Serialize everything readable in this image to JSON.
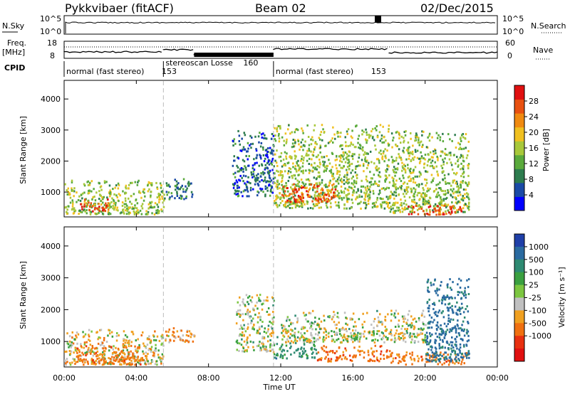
{
  "header": {
    "radar": "Pykkvibaer (fitACF)",
    "beam": "Beam 02",
    "date": "02/Dec/2015"
  },
  "panels_top": {
    "nsky_label": "N.Sky",
    "nsearch_label": "N.Search",
    "nsky_ticks": [
      "10^5",
      "10^0"
    ],
    "nsearch_ticks": [
      "10^5",
      "10^0"
    ],
    "freq_label": "Freq.",
    "freq_unit": "[MHz]",
    "freq_ticks": [
      "18",
      "8"
    ],
    "nave_label": "Nave",
    "nave_ticks": [
      "60",
      "0"
    ],
    "cpid_label": "CPID",
    "modes": [
      {
        "label": "normal (fast stereo)",
        "id": "153",
        "start_h": 0,
        "end_h": 5.5
      },
      {
        "label": "stereoscan Losse",
        "id": "160",
        "start_h": 5.5,
        "end_h": 11.6
      },
      {
        "label": "normal (fast stereo)",
        "id": "153",
        "start_h": 11.6,
        "end_h": 24
      }
    ]
  },
  "x_axis": {
    "label": "Time UT",
    "tick_labels": [
      "00:00",
      "04:00",
      "08:00",
      "12:00",
      "16:00",
      "20:00",
      "00:00"
    ],
    "tick_hours": [
      0,
      4,
      8,
      12,
      16,
      20,
      24
    ]
  },
  "power_panel": {
    "ylabel": "Slant Range [km]",
    "y_ticks": [
      "1000",
      "2000",
      "3000",
      "4000"
    ],
    "colorbar_label": "Power [dB]",
    "colorbar_ticks": [
      "4",
      "8",
      "12",
      "16",
      "20",
      "24",
      "28"
    ],
    "colors": [
      "#0000ff",
      "#1a4aa6",
      "#2d7c4e",
      "#5aaa3c",
      "#a8c83a",
      "#f0c020",
      "#f08a10",
      "#e85010",
      "#e01010"
    ]
  },
  "velocity_panel": {
    "ylabel": "Slant Range [km]",
    "y_ticks": [
      "1000",
      "2000",
      "3000",
      "4000"
    ],
    "colorbar_label": "Velocity [m s⁻¹]",
    "colorbar_ticks": [
      "1000",
      "500",
      "100",
      "25",
      "-25",
      "-100",
      "-500",
      "-1000"
    ],
    "colors": [
      "#1f3fa8",
      "#2a6aa0",
      "#2e8a72",
      "#3aa040",
      "#7cc640",
      "#c0c0c0",
      "#f0a020",
      "#f07010",
      "#e83010",
      "#e01010"
    ]
  },
  "chart_data": [
    {
      "type": "heatmap",
      "title": "Power",
      "xlabel": "Time UT",
      "ylabel": "Slant Range [km]",
      "xlim_hours": [
        0,
        24
      ],
      "ylim_km": [
        200,
        4600
      ],
      "colorbar": {
        "label": "Power [dB]",
        "range": [
          0,
          30
        ]
      },
      "regions": [
        {
          "t": [
            0,
            5.5
          ],
          "r": [
            300,
            1400
          ],
          "value_db": 14
        },
        {
          "t": [
            0.8,
            2.5
          ],
          "r": [
            400,
            800
          ],
          "value_db": 26
        },
        {
          "t": [
            5.5,
            7.2
          ],
          "r": [
            800,
            1450
          ],
          "value_db": 8
        },
        {
          "t": [
            9.3,
            11.6
          ],
          "r": [
            900,
            3000
          ],
          "value_db": 6
        },
        {
          "t": [
            11.6,
            18
          ],
          "r": [
            500,
            3200
          ],
          "value_db": 14
        },
        {
          "t": [
            12,
            15
          ],
          "r": [
            700,
            1300
          ],
          "value_db": 24
        },
        {
          "t": [
            18,
            22.4
          ],
          "r": [
            350,
            3000
          ],
          "value_db": 14
        },
        {
          "t": [
            19,
            22
          ],
          "r": [
            300,
            600
          ],
          "value_db": 26
        }
      ]
    },
    {
      "type": "heatmap",
      "title": "Velocity",
      "xlabel": "Time UT",
      "ylabel": "Slant Range [km]",
      "xlim_hours": [
        0,
        24
      ],
      "ylim_km": [
        200,
        4600
      ],
      "colorbar": {
        "label": "Velocity [m s⁻¹]",
        "range": [
          -1000,
          1000
        ]
      },
      "regions": [
        {
          "t": [
            0,
            5.5
          ],
          "r": [
            300,
            1400
          ],
          "value_ms": -20
        },
        {
          "t": [
            0.5,
            4.5
          ],
          "r": [
            300,
            900
          ],
          "value_ms": -150
        },
        {
          "t": [
            5.5,
            7.2
          ],
          "r": [
            1000,
            1450
          ],
          "value_ms": -80
        },
        {
          "t": [
            9.5,
            11.6
          ],
          "r": [
            700,
            2500
          ],
          "value_ms": 10
        },
        {
          "t": [
            11.6,
            14
          ],
          "r": [
            500,
            1200
          ],
          "value_ms": 150
        },
        {
          "t": [
            14,
            18
          ],
          "r": [
            400,
            900
          ],
          "value_ms": -180
        },
        {
          "t": [
            12,
            20
          ],
          "r": [
            1000,
            2000
          ],
          "value_ms": 10
        },
        {
          "t": [
            18,
            22.4
          ],
          "r": [
            300,
            700
          ],
          "value_ms": -150
        },
        {
          "t": [
            20,
            22.4
          ],
          "r": [
            400,
            3000
          ],
          "value_ms": 300
        }
      ]
    }
  ]
}
